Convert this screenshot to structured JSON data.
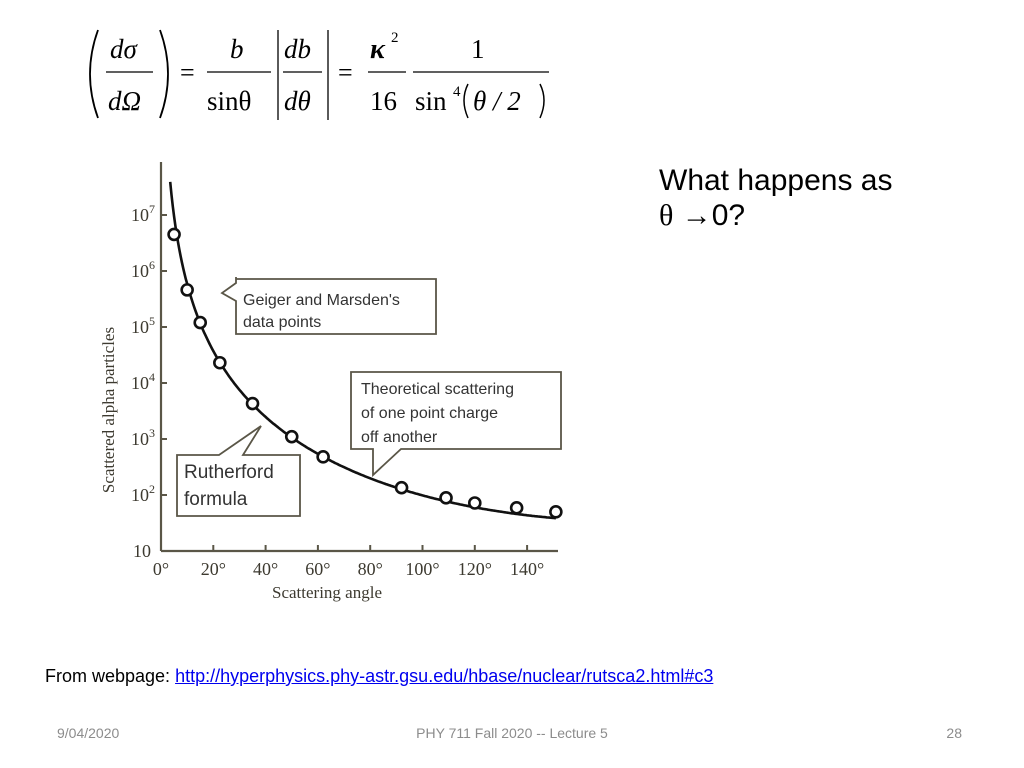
{
  "equation": {
    "lhs_num": "dσ",
    "lhs_den": "dΩ",
    "mid_num": "b",
    "mid_den": "sinθ",
    "abs_num": "db",
    "abs_den": "dθ",
    "k_num": "κ",
    "k_exp": "2",
    "k_den": "16",
    "r_num": "1",
    "r_den_sin": "sin",
    "r_den_exp": "4",
    "r_den_arg": "θ / 2",
    "equals": "="
  },
  "question": {
    "line1": "What happens as",
    "theta": "θ",
    "arrow": "→",
    "line2_rest": "0?"
  },
  "source": {
    "prefix": "From webpage: ",
    "link_text": "http://hyperphysics.phy-astr.gsu.edu/hbase/nuclear/rutsca2.html#c3"
  },
  "footer": {
    "date": "9/04/2020",
    "title": "PHY 711  Fall 2020 -- Lecture 5",
    "page": "28"
  },
  "chart_data": {
    "type": "scatter",
    "title": "",
    "xlabel": "Scattering angle",
    "ylabel": "Scattered alpha particles",
    "yscale": "log",
    "xlim": [
      0,
      150
    ],
    "ylim": [
      10,
      10000000
    ],
    "grid": false,
    "x_ticks": [
      "0°",
      "20°",
      "40°",
      "60°",
      "80°",
      "100°",
      "120°",
      "140°"
    ],
    "x_tick_values": [
      0,
      20,
      40,
      60,
      80,
      100,
      120,
      140
    ],
    "y_ticks": [
      "10",
      "10²",
      "10³",
      "10⁴",
      "10⁵",
      "10⁶",
      "10⁷"
    ],
    "y_tick_exponents": [
      1,
      2,
      3,
      4,
      5,
      6,
      7
    ],
    "series": [
      {
        "name": "Geiger and Marsden's data points",
        "style": "open-circle markers",
        "x": [
          5,
          10,
          15,
          22.5,
          35,
          50,
          62,
          92,
          109,
          120,
          136,
          151
        ],
        "y": [
          4500000,
          460000,
          120000,
          23000,
          4300,
          1100,
          480,
          135,
          89,
          72,
          59,
          50
        ]
      },
      {
        "name": "Rutherford formula",
        "style": "solid line",
        "description": "Theoretical curve ∝ 1/sin⁴(θ/2) through the data points"
      }
    ],
    "annotations": [
      {
        "text": "Geiger and Marsden's data points",
        "lines": [
          "Geiger and Marsden's",
          "data points"
        ]
      },
      {
        "text": "Theoretical scattering of one point charge off another",
        "lines": [
          "Theoretical scattering",
          "of one point charge",
          "off another"
        ]
      },
      {
        "text": "Rutherford formula",
        "lines": [
          "Rutherford",
          "formula"
        ]
      }
    ],
    "colors": {
      "axis": "#5a5647",
      "curve": "#111111",
      "callout_border": "#5a5647",
      "callout_text": "#333333"
    }
  }
}
